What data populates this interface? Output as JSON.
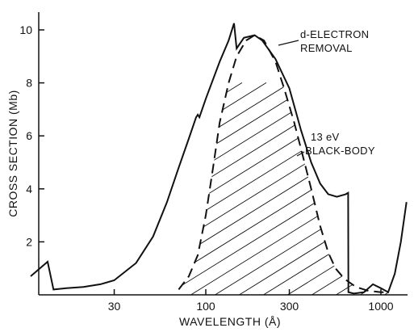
{
  "chart_data": {
    "type": "line",
    "xlabel": "WAVELENGTH (Å)",
    "ylabel": "CROSS SECTION (Mb)",
    "x_scale": "log",
    "xlim": [
      10,
      1500
    ],
    "ylim": [
      0,
      11
    ],
    "x_ticks": [
      30,
      100,
      300,
      1000
    ],
    "y_ticks": [
      2,
      4,
      6,
      8,
      10
    ],
    "grid": false,
    "series": [
      {
        "style": "solid",
        "points": [
          [
            10,
            0.7
          ],
          [
            12.5,
            1.25
          ],
          [
            13.5,
            0.2
          ],
          [
            16,
            0.25
          ],
          [
            20,
            0.3
          ],
          [
            25,
            0.4
          ],
          [
            30,
            0.55
          ],
          [
            40,
            1.2
          ],
          [
            50,
            2.2
          ],
          [
            60,
            3.5
          ],
          [
            70,
            4.8
          ],
          [
            80,
            5.9
          ],
          [
            88,
            6.7
          ],
          [
            90,
            6.8
          ],
          [
            92,
            6.7
          ],
          [
            100,
            7.4
          ],
          [
            120,
            8.8
          ],
          [
            135,
            9.6
          ],
          [
            145,
            10.25
          ],
          [
            150,
            9.3
          ],
          [
            165,
            9.7
          ],
          [
            190,
            9.8
          ],
          [
            210,
            9.6
          ],
          [
            250,
            8.9
          ],
          [
            300,
            7.8
          ],
          [
            350,
            6.2
          ],
          [
            400,
            5.0
          ],
          [
            450,
            4.2
          ],
          [
            500,
            3.8
          ],
          [
            560,
            3.7
          ],
          [
            630,
            3.8
          ],
          [
            650,
            3.85
          ],
          [
            652,
            0.1
          ],
          [
            700,
            0.05
          ],
          [
            800,
            0.1
          ],
          [
            900,
            0.4
          ],
          [
            1000,
            0.25
          ],
          [
            1100,
            0.1
          ],
          [
            1200,
            0.8
          ],
          [
            1300,
            2.0
          ],
          [
            1400,
            3.5
          ]
        ]
      },
      {
        "style": "dashed",
        "points": [
          [
            70,
            0.2
          ],
          [
            80,
            0.7
          ],
          [
            90,
            1.5
          ],
          [
            100,
            3.0
          ],
          [
            110,
            4.8
          ],
          [
            120,
            6.5
          ],
          [
            135,
            8.0
          ],
          [
            150,
            9.0
          ],
          [
            170,
            9.6
          ],
          [
            190,
            9.8
          ],
          [
            215,
            9.6
          ],
          [
            250,
            8.8
          ],
          [
            280,
            7.8
          ],
          [
            320,
            6.5
          ],
          [
            350,
            5.5
          ],
          [
            400,
            4.0
          ],
          [
            450,
            2.6
          ],
          [
            500,
            1.6
          ],
          [
            550,
            1.0
          ],
          [
            620,
            0.6
          ],
          [
            720,
            0.3
          ],
          [
            850,
            0.15
          ],
          [
            1000,
            0.1
          ],
          [
            1100,
            0.1
          ]
        ]
      }
    ],
    "annotations": [
      {
        "lines": [
          "d-ELECTRON",
          "REMOVAL"
        ],
        "x": 235,
        "y": 9.6
      },
      {
        "lines": [
          "13 eV",
          "BLACK-BODY"
        ],
        "x": 345,
        "y": 5.1
      }
    ],
    "shaded_region": "hatched area under the dashed curve"
  }
}
